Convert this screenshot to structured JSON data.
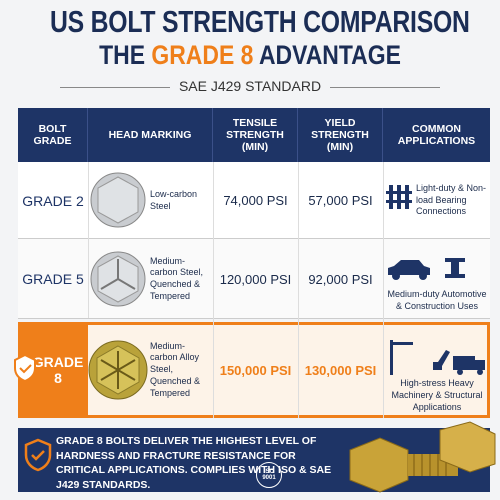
{
  "header": {
    "title": "US BOLT STRENGTH COMPARISON",
    "subtitle": [
      "THE",
      "GRADE 8",
      "ADVANTAGE"
    ],
    "standard": "SAE J429 STANDARD"
  },
  "table": {
    "columns": [
      "BOLT GRADE",
      "HEAD MARKING",
      "TENSILE STRENGTH (MIN)",
      "YIELD STRENGTH (MIN)",
      "COMMON APPLICATIONS"
    ],
    "rows": [
      [
        "GRADE 2",
        "Low-carbon Steel",
        "74,000 PSI",
        "57,000 PSI",
        "Light-duty & Non-load Bearing Connections"
      ],
      [
        "GRADE 5",
        "Medium-carbon Steel, Quenched & Tempered",
        "120,000 PSI",
        "92,000 PSI",
        "Medium-duty Automotive & Construction Uses"
      ],
      [
        "GRADE 8",
        "Medium-carbon Alloy Steel, Quenched & Tempered",
        "150,000 PSI",
        "130,000 PSI",
        "High-stress Heavy Machinery & Structural Applications"
      ]
    ]
  },
  "footer": {
    "text": "GRADE 8 BOLTS DELIVER THE HIGHEST LEVEL OF HARDNESS AND FRACTURE RESISTANCE FOR CRITICAL APPLICATIONS. COMPLIES WITH ISO & SAE J429 STANDARDS.",
    "badge": [
      "ISO",
      "9001"
    ]
  }
}
